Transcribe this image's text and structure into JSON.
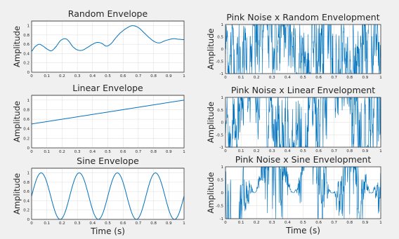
{
  "figure": {
    "background": "#f0f0f0",
    "line_color": "#0072bd"
  },
  "chart_data": [
    {
      "type": "line",
      "title": "Random Envelope",
      "ylabel": "Amplitude",
      "xlabel": "",
      "xlim": [
        0,
        1
      ],
      "ylim": [
        0,
        1.1
      ],
      "xticks": [
        0,
        0.1,
        0.2,
        0.3,
        0.4,
        0.5,
        0.6,
        0.7,
        0.8,
        0.9,
        1
      ],
      "yticks": [
        0,
        0.2,
        0.4,
        0.6,
        0.8,
        1
      ],
      "grid": true,
      "series": [
        {
          "x": [
            0,
            0.02,
            0.05,
            0.08,
            0.1,
            0.13,
            0.16,
            0.19,
            0.22,
            0.24,
            0.27,
            0.3,
            0.33,
            0.36,
            0.4,
            0.43,
            0.46,
            0.49,
            0.52,
            0.55,
            0.58,
            0.62,
            0.66,
            0.7,
            0.74,
            0.78,
            0.81,
            0.84,
            0.87,
            0.9,
            0.93,
            0.96,
            1
          ],
          "y": [
            0.45,
            0.54,
            0.6,
            0.55,
            0.5,
            0.46,
            0.55,
            0.68,
            0.72,
            0.68,
            0.55,
            0.48,
            0.47,
            0.52,
            0.6,
            0.64,
            0.62,
            0.56,
            0.61,
            0.73,
            0.84,
            0.94,
            1.0,
            0.96,
            0.84,
            0.72,
            0.65,
            0.63,
            0.67,
            0.7,
            0.72,
            0.71,
            0.7
          ]
        }
      ]
    },
    {
      "type": "line",
      "title": "Linear Envelope",
      "ylabel": "Amplitude",
      "xlabel": "",
      "xlim": [
        0,
        1
      ],
      "ylim": [
        0,
        1.1
      ],
      "xticks": [
        0,
        0.1,
        0.2,
        0.3,
        0.4,
        0.5,
        0.6,
        0.7,
        0.8,
        0.9,
        1
      ],
      "yticks": [
        0,
        0.2,
        0.4,
        0.6,
        0.8,
        1
      ],
      "grid": true,
      "series": [
        {
          "x": [
            0,
            1
          ],
          "y": [
            0.5,
            1.0
          ]
        }
      ]
    },
    {
      "type": "line",
      "title": "Sine Envelope",
      "ylabel": "Amplitude",
      "xlabel": "Time (s)",
      "xlim": [
        0,
        1
      ],
      "ylim": [
        0,
        1.1
      ],
      "xticks": [
        0,
        0.1,
        0.2,
        0.3,
        0.4,
        0.5,
        0.6,
        0.7,
        0.8,
        0.9,
        1
      ],
      "yticks": [
        0,
        0.2,
        0.4,
        0.6,
        0.8,
        1
      ],
      "grid": true,
      "series": [
        {
          "function": "0.5 + 0.5*sin(2*pi*4*t)",
          "frequency_hz": 4,
          "offset": 0.5,
          "amplitude": 0.5
        }
      ]
    },
    {
      "type": "line",
      "title": "Pink Noise x Random Envelopment",
      "ylabel": "Amplitude",
      "xlabel": "",
      "xlim": [
        0,
        1
      ],
      "ylim": [
        -1,
        1
      ],
      "xticks": [
        0,
        0.1,
        0.2,
        0.3,
        0.4,
        0.5,
        0.6,
        0.7,
        0.8,
        0.9,
        1
      ],
      "yticks": [
        -1,
        -0.5,
        0,
        0.5,
        1
      ],
      "grid": true,
      "series": [
        {
          "function": "pink_noise(t) * random_envelope(t)"
        }
      ]
    },
    {
      "type": "line",
      "title": "Pink Noise x Linear Envelopment",
      "ylabel": "Amplitude",
      "xlabel": "",
      "xlim": [
        0,
        1
      ],
      "ylim": [
        -1,
        1
      ],
      "xticks": [
        0,
        0.1,
        0.2,
        0.3,
        0.4,
        0.5,
        0.6,
        0.7,
        0.8,
        0.9,
        1
      ],
      "yticks": [
        -1,
        -0.5,
        0,
        0.5,
        1
      ],
      "grid": true,
      "series": [
        {
          "function": "pink_noise(t) * linear_envelope(t)"
        }
      ]
    },
    {
      "type": "line",
      "title": "Pink Noise x Sine Envelopment",
      "ylabel": "Amplitude",
      "xlabel": "Time (s)",
      "xlim": [
        0,
        1
      ],
      "ylim": [
        -1,
        1
      ],
      "xticks": [
        0,
        0.1,
        0.2,
        0.3,
        0.4,
        0.5,
        0.6,
        0.7,
        0.8,
        0.9,
        1
      ],
      "yticks": [
        -1,
        -0.5,
        0,
        0.5,
        1
      ],
      "grid": true,
      "series": [
        {
          "function": "pink_noise(t) * sine_envelope(t)"
        }
      ]
    }
  ]
}
